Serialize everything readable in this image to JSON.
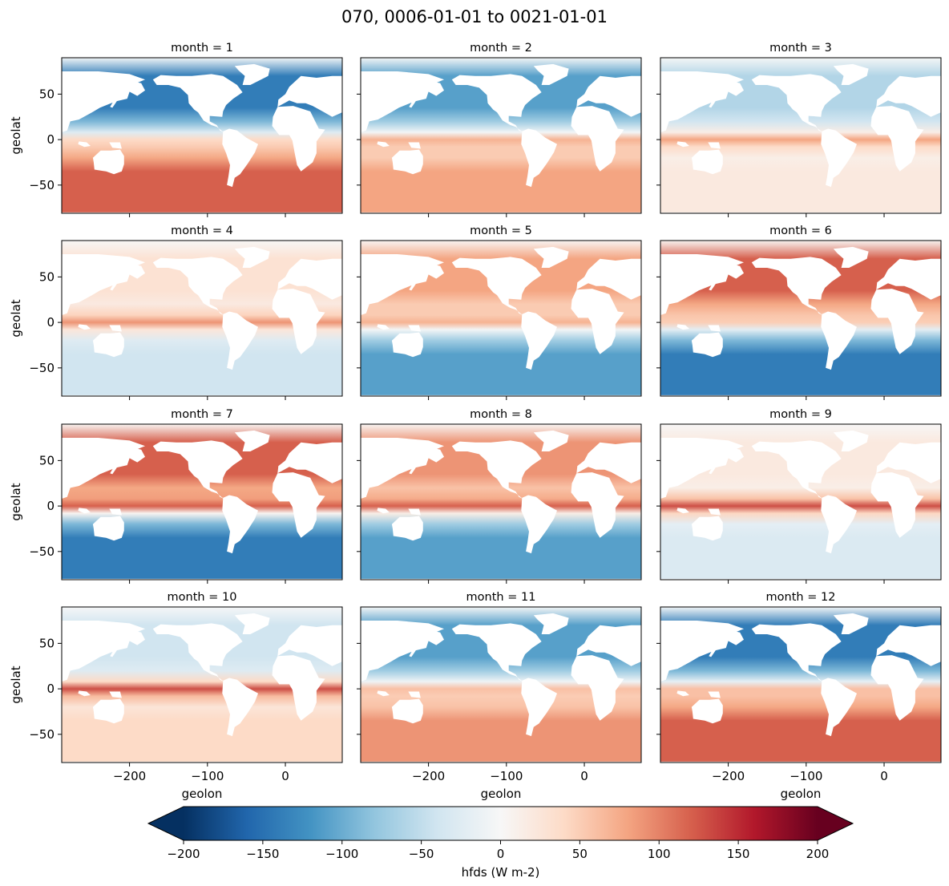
{
  "chart_data": {
    "type": "heatmap",
    "title": "070, 0006-01-01 to 0021-01-01",
    "panels": [
      {
        "title": "month = 1",
        "month": 1,
        "nh_value": -140,
        "sh_value": 120,
        "eq_value": 40
      },
      {
        "title": "month = 2",
        "month": 2,
        "nh_value": -110,
        "sh_value": 80,
        "eq_value": 70
      },
      {
        "title": "month = 3",
        "month": 3,
        "nh_value": -60,
        "sh_value": 20,
        "eq_value": 80
      },
      {
        "title": "month = 4",
        "month": 4,
        "nh_value": 30,
        "sh_value": -40,
        "eq_value": 90
      },
      {
        "title": "month = 5",
        "month": 5,
        "nh_value": 80,
        "sh_value": -110,
        "eq_value": 70
      },
      {
        "title": "month = 6",
        "month": 6,
        "nh_value": 120,
        "sh_value": -140,
        "eq_value": 50
      },
      {
        "title": "month = 7",
        "month": 7,
        "nh_value": 120,
        "sh_value": -140,
        "eq_value": 120
      },
      {
        "title": "month = 8",
        "month": 8,
        "nh_value": 90,
        "sh_value": -110,
        "eq_value": 120
      },
      {
        "title": "month = 9",
        "month": 9,
        "nh_value": 20,
        "sh_value": -30,
        "eq_value": 130
      },
      {
        "title": "month = 10",
        "month": 10,
        "nh_value": -40,
        "sh_value": 40,
        "eq_value": 130
      },
      {
        "title": "month = 11",
        "month": 11,
        "nh_value": -110,
        "sh_value": 90,
        "eq_value": 60
      },
      {
        "title": "month = 12",
        "month": 12,
        "nh_value": -140,
        "sh_value": 120,
        "eq_value": 60
      }
    ],
    "x": {
      "label": "geolon",
      "range": [
        -287,
        73
      ],
      "ticks": [
        -200,
        -100,
        0
      ],
      "tick_labels": [
        "−200",
        "−100",
        "0"
      ]
    },
    "y": {
      "label": "geolat",
      "range": [
        -81,
        90
      ],
      "ticks": [
        -50,
        0,
        50
      ],
      "tick_labels": [
        "−50",
        "0",
        "50"
      ]
    },
    "colorbar": {
      "label": "hfds (W m-2)",
      "range": [
        -200,
        200
      ],
      "extend": "both",
      "colormap": "RdBu_r",
      "ticks": [
        -200,
        -150,
        -100,
        -50,
        0,
        50,
        100,
        150,
        200
      ],
      "tick_labels": [
        "−200",
        "−150",
        "−100",
        "−50",
        "0",
        "50",
        "100",
        "150",
        "200"
      ]
    },
    "colors": {
      "min": "#053061",
      "mid": "#f7f7f7",
      "max": "#67001f",
      "land": "#ffffff"
    }
  }
}
